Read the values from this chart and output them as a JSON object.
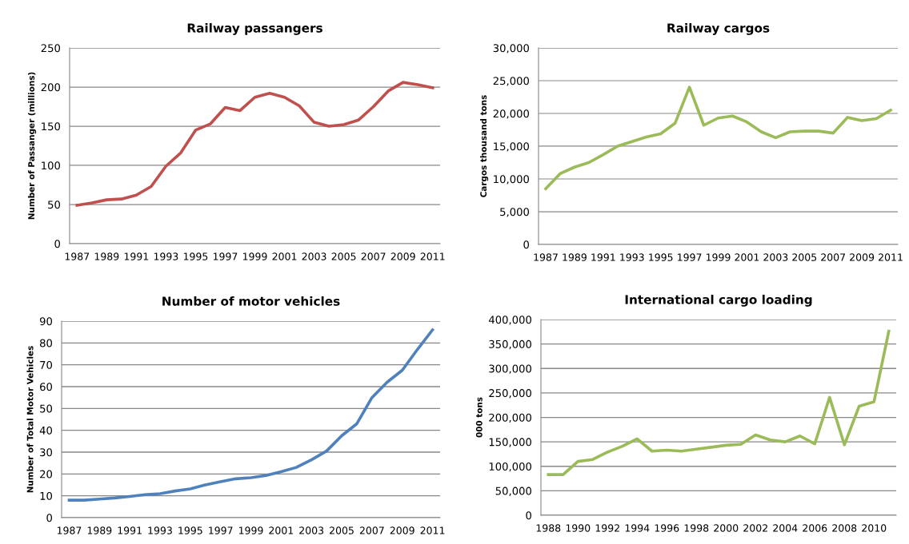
{
  "chart_data": [
    {
      "type": "line",
      "title": "Railway passangers",
      "ylabel": "Number of Passanger (millions)",
      "categories": [
        "1987",
        null,
        "1989",
        null,
        "1991",
        null,
        "1993",
        null,
        "1995",
        null,
        "1997",
        null,
        "1999",
        null,
        "2001",
        null,
        "2003",
        null,
        "2005",
        null,
        "2007",
        null,
        "2009",
        null,
        "2011"
      ],
      "series": [
        {
          "color": "#c0504d",
          "values": [
            49,
            52,
            56,
            57,
            62,
            73,
            99,
            116,
            145,
            153,
            174,
            170,
            187,
            192,
            187,
            176,
            155,
            150,
            152,
            158,
            175,
            195,
            206,
            203,
            199
          ]
        }
      ],
      "ylim": [
        0,
        250
      ],
      "yticks": [
        0,
        50,
        100,
        150,
        200,
        250
      ],
      "grid": "y"
    },
    {
      "type": "line",
      "title": "Railway cargos",
      "ylabel": "Cargos thousand tons",
      "categories": [
        "1987",
        null,
        "1989",
        null,
        "1991",
        null,
        "1993",
        null,
        "1995",
        null,
        "1997",
        null,
        "1999",
        null,
        "2001",
        null,
        "2003",
        null,
        "2005",
        null,
        "2007",
        null,
        "2009",
        null,
        "2011"
      ],
      "series": [
        {
          "color": "#9bbb59",
          "values": [
            8500,
            10800,
            11800,
            12500,
            13700,
            15000,
            15700,
            16400,
            16900,
            18500,
            24000,
            18200,
            19300,
            19600,
            18700,
            17200,
            16300,
            17200,
            17300,
            17300,
            17000,
            19400,
            18900,
            19200,
            20500
          ]
        }
      ],
      "ylim": [
        0,
        30000
      ],
      "yticks": [
        0,
        {
          "value": 5000,
          "label": "5,000"
        },
        {
          "value": 10000,
          "label": "10,000"
        },
        {
          "value": 15000,
          "label": "15,000"
        },
        {
          "value": 20000,
          "label": "20,000"
        },
        {
          "value": 25000,
          "label": "25,000"
        },
        {
          "value": 30000,
          "label": "30,000"
        }
      ],
      "grid": "y"
    },
    {
      "type": "line",
      "title": "Number of motor vehicles",
      "ylabel": "Number of Total Motor Vehicles",
      "categories": [
        "1987",
        null,
        "1989",
        null,
        "1991",
        null,
        "1993",
        null,
        "1995",
        null,
        "1997",
        null,
        "1999",
        null,
        "2001",
        null,
        "2003",
        null,
        "2005",
        null,
        "2007",
        null,
        "2009",
        null,
        "2011"
      ],
      "series": [
        {
          "color": "#4f81bd",
          "values": [
            8,
            8,
            8.5,
            9,
            9.7,
            10.5,
            11,
            12.2,
            13.2,
            15,
            16.5,
            17.8,
            18.3,
            19.3,
            21,
            23,
            26.5,
            30.5,
            37.5,
            43,
            55,
            62,
            67.5,
            77,
            86
          ]
        }
      ],
      "ylim": [
        0,
        90
      ],
      "yticks": [
        0,
        10,
        20,
        30,
        40,
        50,
        60,
        70,
        80,
        90
      ],
      "grid": "y"
    },
    {
      "type": "line",
      "title": "International cargo loading",
      "ylabel": "000 tons",
      "categories": [
        "1988",
        null,
        "1990",
        null,
        "1992",
        null,
        "1994",
        null,
        "1996",
        null,
        "1998",
        null,
        "2000",
        null,
        "2002",
        null,
        "2004",
        null,
        "2006",
        null,
        "2008",
        null,
        "2010",
        null
      ],
      "series": [
        {
          "color": "#9bbb59",
          "values": [
            83000,
            83000,
            110000,
            114000,
            129000,
            141000,
            156000,
            131000,
            133000,
            131000,
            135000,
            139000,
            143000,
            145000,
            164000,
            154000,
            150000,
            162000,
            146000,
            241000,
            144000,
            223000,
            232000,
            376000
          ]
        }
      ],
      "ylim": [
        0,
        400000
      ],
      "yticks": [
        0,
        {
          "value": 50000,
          "label": "50,000"
        },
        {
          "value": 100000,
          "label": "100,000"
        },
        {
          "value": 150000,
          "label": "150,000"
        },
        {
          "value": 200000,
          "label": "200,000"
        },
        {
          "value": 250000,
          "label": "250,000"
        },
        {
          "value": 300000,
          "label": "300,000"
        },
        {
          "value": 350000,
          "label": "350,000"
        },
        {
          "value": 400000,
          "label": "400,000"
        }
      ],
      "grid": "y"
    }
  ]
}
